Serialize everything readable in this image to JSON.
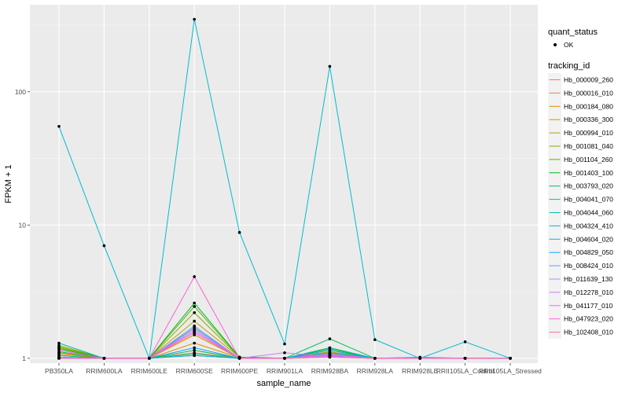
{
  "chart_data": {
    "type": "line",
    "xlabel": "sample_name",
    "ylabel": "FPKM + 1",
    "y_scale": "log10",
    "ylim": [
      0.92,
      450
    ],
    "y_ticks": [
      {
        "value": 1,
        "label": "1"
      },
      {
        "value": 10,
        "label": "10"
      },
      {
        "value": 100,
        "label": "100"
      }
    ],
    "grid": true,
    "legend_position": "right",
    "categories": [
      "PB350LA",
      "RRIM600LA",
      "RRIM600LE",
      "RRIM600SE",
      "RRIM600PE",
      "RRIM901LA",
      "RRIM928BA",
      "RRIM928LA",
      "RRIM928LE",
      "RRII105LA_Control",
      "RRII105LA_Stressed"
    ],
    "legend_point": {
      "title": "quant_status",
      "label": "OK"
    },
    "legend_title": "tracking_id",
    "series": [
      {
        "name": "Hb_000009_260",
        "color": "#F8766D",
        "values": [
          1.02,
          1.0,
          1.0,
          1.05,
          1.0,
          1.0,
          1.02,
          1.0,
          1.0,
          1.0,
          1.0
        ]
      },
      {
        "name": "Hb_000016_010",
        "color": "#EE8043",
        "values": [
          1.05,
          1.0,
          1.0,
          1.1,
          1.0,
          1.0,
          1.05,
          1.0,
          1.0,
          1.0,
          1.0
        ]
      },
      {
        "name": "Hb_000184_080",
        "color": "#DF8E00",
        "values": [
          1.1,
          1.0,
          1.0,
          1.3,
          1.01,
          1.0,
          1.08,
          1.0,
          1.0,
          1.0,
          1.0
        ]
      },
      {
        "name": "Hb_000336_300",
        "color": "#CA9A00",
        "values": [
          1.08,
          1.0,
          1.0,
          1.5,
          1.0,
          1.0,
          1.1,
          1.0,
          1.0,
          1.0,
          1.0
        ]
      },
      {
        "name": "Hb_000994_010",
        "color": "#AFA200",
        "values": [
          1.2,
          1.0,
          1.0,
          1.9,
          1.02,
          1.0,
          1.12,
          1.0,
          1.0,
          1.0,
          1.0
        ]
      },
      {
        "name": "Hb_001081_040",
        "color": "#8BAB00",
        "values": [
          1.25,
          1.0,
          1.0,
          2.2,
          1.02,
          1.0,
          1.1,
          1.0,
          1.0,
          1.0,
          1.0
        ]
      },
      {
        "name": "Hb_001104_260",
        "color": "#55B300",
        "values": [
          1.22,
          1.0,
          1.0,
          2.45,
          1.02,
          1.0,
          1.15,
          1.0,
          1.0,
          1.0,
          1.0
        ]
      },
      {
        "name": "Hb_001403_100",
        "color": "#00B81F",
        "values": [
          1.18,
          1.0,
          1.0,
          2.6,
          1.02,
          1.0,
          1.18,
          1.0,
          1.0,
          1.0,
          1.0
        ]
      },
      {
        "name": "Hb_003793_020",
        "color": "#00BC59",
        "values": [
          1.12,
          1.0,
          1.0,
          1.15,
          1.0,
          1.0,
          1.4,
          1.0,
          1.0,
          1.0,
          1.0
        ]
      },
      {
        "name": "Hb_004041_070",
        "color": "#00BE86",
        "values": [
          1.05,
          1.0,
          1.0,
          1.08,
          1.0,
          1.0,
          1.2,
          1.0,
          1.0,
          1.0,
          1.0
        ]
      },
      {
        "name": "Hb_004044_060",
        "color": "#00BFAB",
        "values": [
          1.3,
          1.0,
          1.0,
          1.7,
          1.0,
          1.0,
          1.1,
          1.0,
          1.0,
          1.0,
          1.0
        ]
      },
      {
        "name": "Hb_004324_410",
        "color": "#00BDCC",
        "values": [
          55,
          7.0,
          1.0,
          350,
          8.8,
          1.28,
          155,
          1.38,
          1.0,
          1.33,
          1.0
        ]
      },
      {
        "name": "Hb_004604_020",
        "color": "#00B6E9",
        "values": [
          1.0,
          1.0,
          1.0,
          1.05,
          1.0,
          1.0,
          1.05,
          1.0,
          1.0,
          1.0,
          1.0
        ]
      },
      {
        "name": "Hb_004829_050",
        "color": "#00ABFD",
        "values": [
          1.0,
          1.0,
          1.0,
          1.2,
          1.0,
          1.0,
          1.15,
          1.0,
          1.0,
          1.0,
          1.0
        ]
      },
      {
        "name": "Hb_008424_010",
        "color": "#619CFF",
        "values": [
          1.02,
          1.0,
          1.0,
          1.6,
          1.0,
          1.0,
          1.08,
          1.0,
          1.02,
          1.0,
          1.0
        ]
      },
      {
        "name": "Hb_011639_130",
        "color": "#A58AFF",
        "values": [
          1.0,
          1.0,
          1.0,
          1.75,
          1.0,
          1.0,
          1.06,
          1.0,
          1.0,
          1.0,
          1.0
        ]
      },
      {
        "name": "Hb_012278_010",
        "color": "#CF78FF",
        "values": [
          1.0,
          1.0,
          1.0,
          1.65,
          1.0,
          1.1,
          1.03,
          1.0,
          1.0,
          1.0,
          1.0
        ]
      },
      {
        "name": "Hb_041177_010",
        "color": "#EA6AF1",
        "values": [
          1.0,
          1.0,
          1.0,
          1.6,
          1.0,
          1.0,
          1.04,
          1.0,
          1.0,
          1.0,
          1.0
        ]
      },
      {
        "name": "Hb_047923_020",
        "color": "#FB61D7",
        "values": [
          1.15,
          1.0,
          1.0,
          4.1,
          1.0,
          1.0,
          1.07,
          1.0,
          1.0,
          1.0,
          1.0
        ]
      },
      {
        "name": "Hb_102408_010",
        "color": "#FF65AE",
        "values": [
          1.0,
          1.0,
          1.0,
          1.55,
          1.0,
          1.0,
          1.02,
          1.0,
          1.0,
          1.0,
          1.0
        ]
      }
    ]
  }
}
